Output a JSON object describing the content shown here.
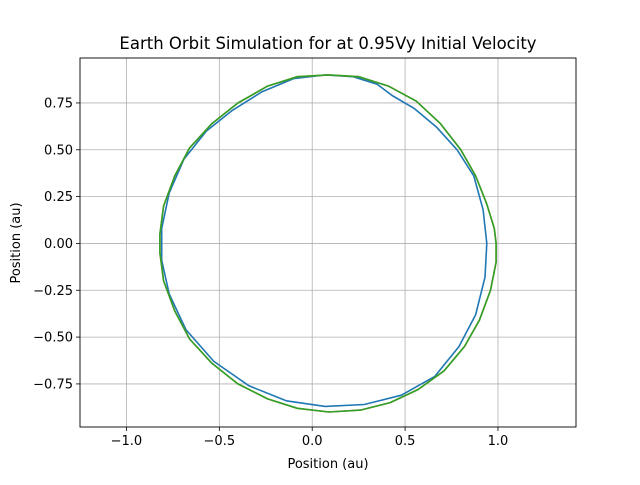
{
  "chart_data": {
    "type": "line",
    "title": "Earth Orbit Simulation for at 0.95Vy Initial Velocity",
    "xlabel": "Position (au)",
    "ylabel": "Position (au)",
    "xlim": [
      -1.25,
      1.42
    ],
    "ylim": [
      -0.98,
      0.99
    ],
    "xticks": [
      -1.0,
      -0.5,
      0.0,
      0.5,
      1.0
    ],
    "xtick_labels": [
      "−1.0",
      "−0.5",
      "0.0",
      "0.5",
      "1.0"
    ],
    "yticks": [
      -0.75,
      -0.5,
      -0.25,
      0.0,
      0.25,
      0.5,
      0.75
    ],
    "ytick_labels": [
      "−0.75",
      "−0.50",
      "−0.25",
      "0.00",
      "0.25",
      "0.50",
      "0.75"
    ],
    "grid": true,
    "series": [
      {
        "color": "#1f77b4",
        "points": [
          [
            0.43,
            0.79
          ],
          [
            0.55,
            0.72
          ],
          [
            0.67,
            0.62
          ],
          [
            0.78,
            0.5
          ],
          [
            0.87,
            0.36
          ],
          [
            0.92,
            0.18
          ],
          [
            0.94,
            0.0
          ],
          [
            0.93,
            -0.18
          ],
          [
            0.88,
            -0.38
          ],
          [
            0.79,
            -0.55
          ],
          [
            0.66,
            -0.71
          ],
          [
            0.48,
            -0.81
          ],
          [
            0.28,
            -0.86
          ],
          [
            0.07,
            -0.87
          ],
          [
            -0.14,
            -0.84
          ],
          [
            -0.34,
            -0.76
          ],
          [
            -0.53,
            -0.63
          ],
          [
            -0.68,
            -0.46
          ],
          [
            -0.77,
            -0.27
          ],
          [
            -0.81,
            -0.09
          ],
          [
            -0.81,
            0.08
          ],
          [
            -0.77,
            0.27
          ],
          [
            -0.69,
            0.45
          ],
          [
            -0.57,
            0.6
          ],
          [
            -0.43,
            0.71
          ],
          [
            -0.27,
            0.81
          ],
          [
            -0.1,
            0.88
          ],
          [
            0.07,
            0.9
          ],
          [
            0.22,
            0.89
          ],
          [
            0.35,
            0.85
          ],
          [
            0.43,
            0.79
          ]
        ]
      },
      {
        "color": "#ff7f0e",
        "points": [
          [
            0.09,
            0.9
          ],
          [
            0.25,
            0.89
          ],
          [
            0.41,
            0.84
          ],
          [
            0.56,
            0.76
          ],
          [
            0.69,
            0.64
          ],
          [
            0.8,
            0.5
          ],
          [
            0.88,
            0.36
          ],
          [
            0.94,
            0.21
          ],
          [
            0.98,
            0.08
          ],
          [
            0.99,
            0.0
          ],
          [
            0.99,
            -0.1
          ],
          [
            0.96,
            -0.25
          ],
          [
            0.9,
            -0.41
          ],
          [
            0.82,
            -0.55
          ],
          [
            0.71,
            -0.68
          ],
          [
            0.57,
            -0.78
          ],
          [
            0.42,
            -0.85
          ],
          [
            0.26,
            -0.89
          ],
          [
            0.09,
            -0.9
          ],
          [
            -0.08,
            -0.88
          ],
          [
            -0.24,
            -0.83
          ],
          [
            -0.4,
            -0.75
          ],
          [
            -0.54,
            -0.64
          ],
          [
            -0.66,
            -0.51
          ],
          [
            -0.74,
            -0.36
          ],
          [
            -0.8,
            -0.2
          ],
          [
            -0.82,
            -0.05
          ],
          [
            -0.82,
            0.05
          ],
          [
            -0.8,
            0.2
          ],
          [
            -0.74,
            0.36
          ],
          [
            -0.66,
            0.51
          ],
          [
            -0.54,
            0.64
          ],
          [
            -0.4,
            0.75
          ],
          [
            -0.24,
            0.84
          ],
          [
            -0.08,
            0.89
          ],
          [
            0.09,
            0.9
          ]
        ]
      },
      {
        "color": "#2ca02c",
        "points": [
          [
            0.09,
            0.9
          ],
          [
            0.25,
            0.89
          ],
          [
            0.41,
            0.84
          ],
          [
            0.56,
            0.76
          ],
          [
            0.69,
            0.64
          ],
          [
            0.8,
            0.5
          ],
          [
            0.88,
            0.36
          ],
          [
            0.94,
            0.21
          ],
          [
            0.98,
            0.08
          ],
          [
            0.99,
            0.0
          ],
          [
            0.99,
            -0.1
          ],
          [
            0.96,
            -0.25
          ],
          [
            0.9,
            -0.41
          ],
          [
            0.82,
            -0.55
          ],
          [
            0.71,
            -0.68
          ],
          [
            0.57,
            -0.78
          ],
          [
            0.42,
            -0.85
          ],
          [
            0.26,
            -0.89
          ],
          [
            0.09,
            -0.9
          ],
          [
            -0.08,
            -0.88
          ],
          [
            -0.24,
            -0.83
          ],
          [
            -0.4,
            -0.75
          ],
          [
            -0.54,
            -0.64
          ],
          [
            -0.66,
            -0.51
          ],
          [
            -0.74,
            -0.36
          ],
          [
            -0.8,
            -0.2
          ],
          [
            -0.82,
            -0.05
          ],
          [
            -0.82,
            0.05
          ],
          [
            -0.8,
            0.2
          ],
          [
            -0.74,
            0.36
          ],
          [
            -0.66,
            0.51
          ],
          [
            -0.54,
            0.64
          ],
          [
            -0.4,
            0.75
          ],
          [
            -0.24,
            0.84
          ],
          [
            -0.08,
            0.89
          ],
          [
            0.09,
            0.9
          ]
        ]
      }
    ]
  }
}
